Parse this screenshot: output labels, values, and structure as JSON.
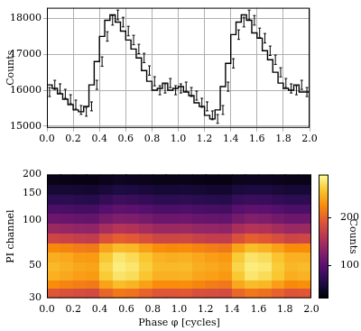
{
  "chart_data": [
    {
      "type": "line",
      "y_label": "Counts",
      "line_style": "steps",
      "color": "#000000",
      "grid": true,
      "bins": [
        0,
        0.04,
        0.08,
        0.12,
        0.16,
        0.2,
        0.24,
        0.28,
        0.32,
        0.36,
        0.4,
        0.44,
        0.48,
        0.52,
        0.56,
        0.6,
        0.64,
        0.68,
        0.72,
        0.76,
        0.8,
        0.84,
        0.88,
        0.92,
        0.96,
        1,
        1.04,
        1.08,
        1.12,
        1.16,
        1.2,
        1.24,
        1.28,
        1.32,
        1.36,
        1.4,
        1.44,
        1.48,
        1.52,
        1.56,
        1.6,
        1.64,
        1.68,
        1.72,
        1.76,
        1.8,
        1.84,
        1.88,
        1.92,
        1.96,
        2
      ],
      "values": [
        15950,
        16150,
        16050,
        15900,
        15750,
        15600,
        15450,
        15400,
        15550,
        16150,
        16800,
        17500,
        17950,
        18100,
        17900,
        17650,
        17400,
        17150,
        16900,
        16550,
        16250,
        16000,
        16050,
        16200,
        16000,
        16050,
        16100,
        15950,
        15850,
        15650,
        15550,
        15300,
        15200,
        15450,
        16100,
        16750,
        17550,
        17900,
        18100,
        17950,
        17600,
        17450,
        17100,
        16850,
        16500,
        16200,
        16050,
        16000,
        16150,
        15950
      ],
      "errors": [
        126,
        127,
        127,
        126,
        125,
        125,
        124,
        124,
        125,
        127,
        130,
        132,
        134,
        135,
        134,
        133,
        132,
        131,
        130,
        129,
        127,
        126,
        127,
        127,
        126,
        127,
        127,
        126,
        126,
        125,
        125,
        124,
        123,
        124,
        127,
        129,
        132,
        134,
        135,
        134,
        133,
        132,
        131,
        130,
        128,
        127,
        127,
        126,
        127,
        126
      ],
      "xlim": [
        0,
        2
      ],
      "xticks": [
        {
          "value": 0,
          "label": "0.0"
        },
        0.2,
        0.4,
        0.6,
        0.8,
        {
          "value": 1,
          "label": "1.0"
        },
        1.2,
        1.4,
        1.6,
        1.8,
        {
          "value": 2,
          "label": "2.0"
        }
      ],
      "ylim": [
        14950,
        18300
      ],
      "yticks": [
        15000,
        16000,
        17000,
        18000
      ]
    },
    {
      "type": "heatmap",
      "x_label": "Phase φ [cycles]",
      "y_label": "PI channel",
      "log": "y",
      "grid": false,
      "xlim": [
        0,
        2
      ],
      "xticks": [
        {
          "value": 0,
          "label": "0.0"
        },
        0.2,
        0.4,
        0.6,
        0.8,
        {
          "value": 1,
          "label": "1.0"
        },
        1.2,
        1.4,
        1.6,
        1.8,
        {
          "value": 2,
          "label": "2.0"
        }
      ],
      "ylim": [
        30,
        200
      ],
      "yticks": [
        30,
        50,
        100,
        150,
        200
      ],
      "x_bins": [
        0,
        0.1,
        0.2,
        0.3,
        0.4,
        0.5,
        0.6,
        0.7,
        0.8,
        0.9,
        1,
        1.1,
        1.2,
        1.3,
        1.4,
        1.5,
        1.6,
        1.7,
        1.8,
        1.9,
        2
      ],
      "y_bins": [
        30,
        35,
        40,
        46,
        53,
        61,
        70,
        82,
        95,
        110,
        128,
        148,
        172,
        200
      ],
      "cells": [
        [
          190,
          186,
          182,
          180,
          201,
          213,
          209,
          200,
          190,
          190,
          192,
          185,
          183,
          181,
          203,
          212,
          208,
          199,
          189,
          191
        ],
        [
          225,
          220,
          216,
          214,
          238,
          252,
          247,
          236,
          225,
          225,
          226,
          221,
          215,
          213,
          240,
          251,
          248,
          235,
          224,
          226
        ],
        [
          245,
          240,
          235,
          233,
          260,
          274,
          270,
          257,
          245,
          245,
          246,
          239,
          236,
          232,
          259,
          275,
          269,
          258,
          244,
          246
        ],
        [
          250,
          245,
          240,
          238,
          265,
          280,
          275,
          262,
          250,
          250,
          251,
          244,
          241,
          237,
          266,
          279,
          276,
          261,
          249,
          251
        ],
        [
          244,
          241,
          234,
          233,
          259,
          275,
          269,
          258,
          246,
          244,
          245,
          240,
          235,
          232,
          260,
          274,
          270,
          256,
          245,
          245
        ],
        [
          224,
          221,
          215,
          214,
          239,
          251,
          248,
          236,
          226,
          224,
          225,
          220,
          216,
          213,
          238,
          252,
          247,
          237,
          225,
          225
        ],
        [
          175,
          172,
          168,
          166,
          186,
          196,
          193,
          184,
          175,
          175,
          176,
          171,
          167,
          166,
          185,
          197,
          192,
          183,
          174,
          176
        ],
        [
          140,
          137,
          134,
          133,
          148,
          157,
          154,
          147,
          140,
          140,
          141,
          136,
          135,
          133,
          149,
          156,
          154,
          146,
          139,
          141
        ],
        [
          110,
          108,
          106,
          104,
          117,
          123,
          121,
          116,
          110,
          110,
          111,
          107,
          105,
          104,
          116,
          124,
          121,
          115,
          110,
          110
        ],
        [
          90,
          88,
          86,
          86,
          95,
          101,
          99,
          95,
          90,
          90,
          91,
          88,
          87,
          85,
          96,
          100,
          99,
          94,
          90,
          90
        ],
        [
          72,
          71,
          69,
          68,
          76,
          81,
          79,
          76,
          72,
          72,
          73,
          70,
          69,
          68,
          77,
          80,
          79,
          75,
          72,
          72
        ],
        [
          55,
          54,
          53,
          52,
          58,
          62,
          61,
          58,
          55,
          55,
          56,
          54,
          52,
          52,
          59,
          61,
          60,
          57,
          55,
          55
        ],
        [
          40,
          39,
          38,
          38,
          42,
          45,
          44,
          42,
          40,
          40,
          41,
          39,
          38,
          38,
          43,
          44,
          44,
          42,
          40,
          40
        ]
      ],
      "colorbar_range": [
        30,
        290
      ],
      "colorbar_ticks": [
        100,
        200
      ],
      "colorbar_label": "Counts"
    }
  ]
}
